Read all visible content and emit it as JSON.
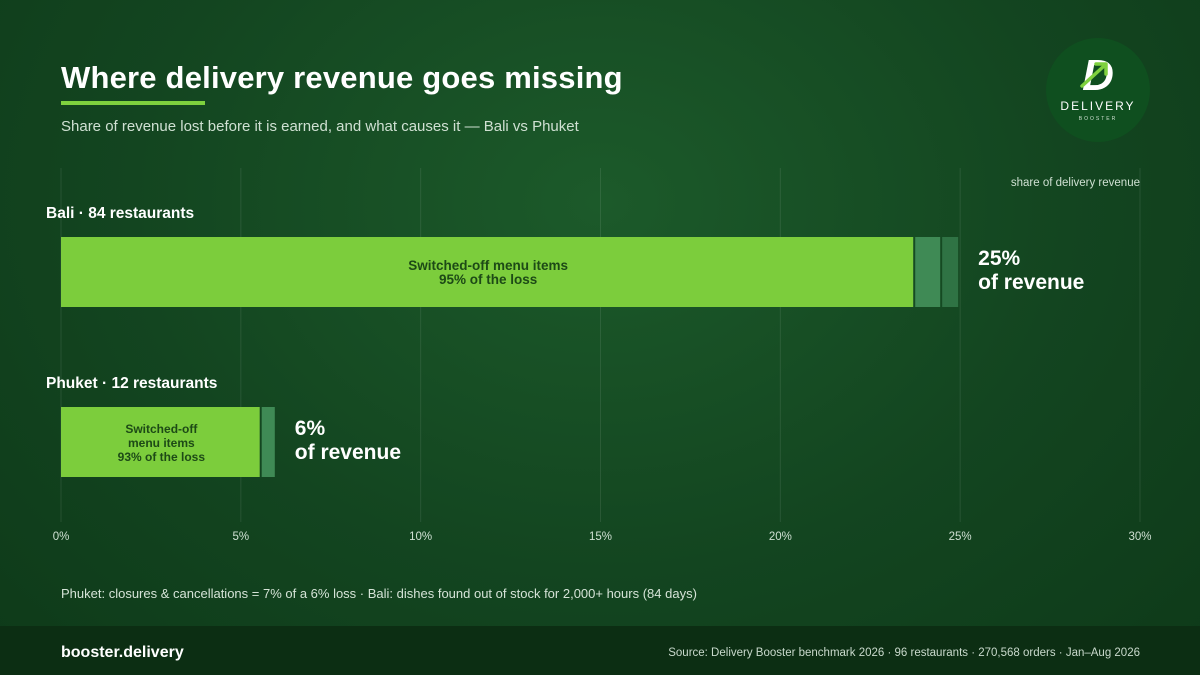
{
  "header": {
    "title": "Where delivery revenue goes missing",
    "subtitle": "Share of revenue lost before it is earned, and what causes it — Bali vs Phuket"
  },
  "logo": {
    "letter": "D",
    "word": "DELIVERY",
    "sub": "BOOSTER"
  },
  "colors": {
    "primary_segment": "#7ccd3c",
    "secondary_segment": "#3f8a55",
    "tertiary_segment": "#2f7344",
    "accent": "#7ed13e"
  },
  "chart_data": {
    "type": "bar",
    "orientation": "horizontal",
    "stacked": true,
    "axis_label": "share of delivery revenue",
    "xlim": [
      0,
      30
    ],
    "ticks": [
      "0%",
      "5%",
      "10%",
      "15%",
      "20%",
      "25%",
      "30%"
    ],
    "grid": true,
    "bars": [
      {
        "category": "Bali · 84 restaurants",
        "total_label_pct": "25%",
        "total_label_text": "of revenue",
        "segments": [
          {
            "value": 23.75,
            "label_lines": [
              "Switched-off menu items",
              "95% of the loss"
            ]
          },
          {
            "value": 0.75,
            "label_lines": []
          },
          {
            "value": 0.5,
            "label_lines": []
          }
        ]
      },
      {
        "category": "Phuket · 12 restaurants",
        "total_label_pct": "6%",
        "total_label_text": "of revenue",
        "segments": [
          {
            "value": 5.58,
            "label_lines": [
              "Switched-off",
              "menu items",
              "93% of the loss"
            ]
          },
          {
            "value": 0.42,
            "label_lines": []
          }
        ]
      }
    ]
  },
  "notes": {
    "caption": "Phuket: closures & cancellations = 7% of a 6% loss · Bali: dishes found out of stock for 2,000+ hours (84 days)"
  },
  "footer": {
    "brand": "booster.delivery",
    "source": "Source: Delivery Booster benchmark 2026 · 96 restaurants · 270,568 orders · Jan–Aug 2026"
  }
}
